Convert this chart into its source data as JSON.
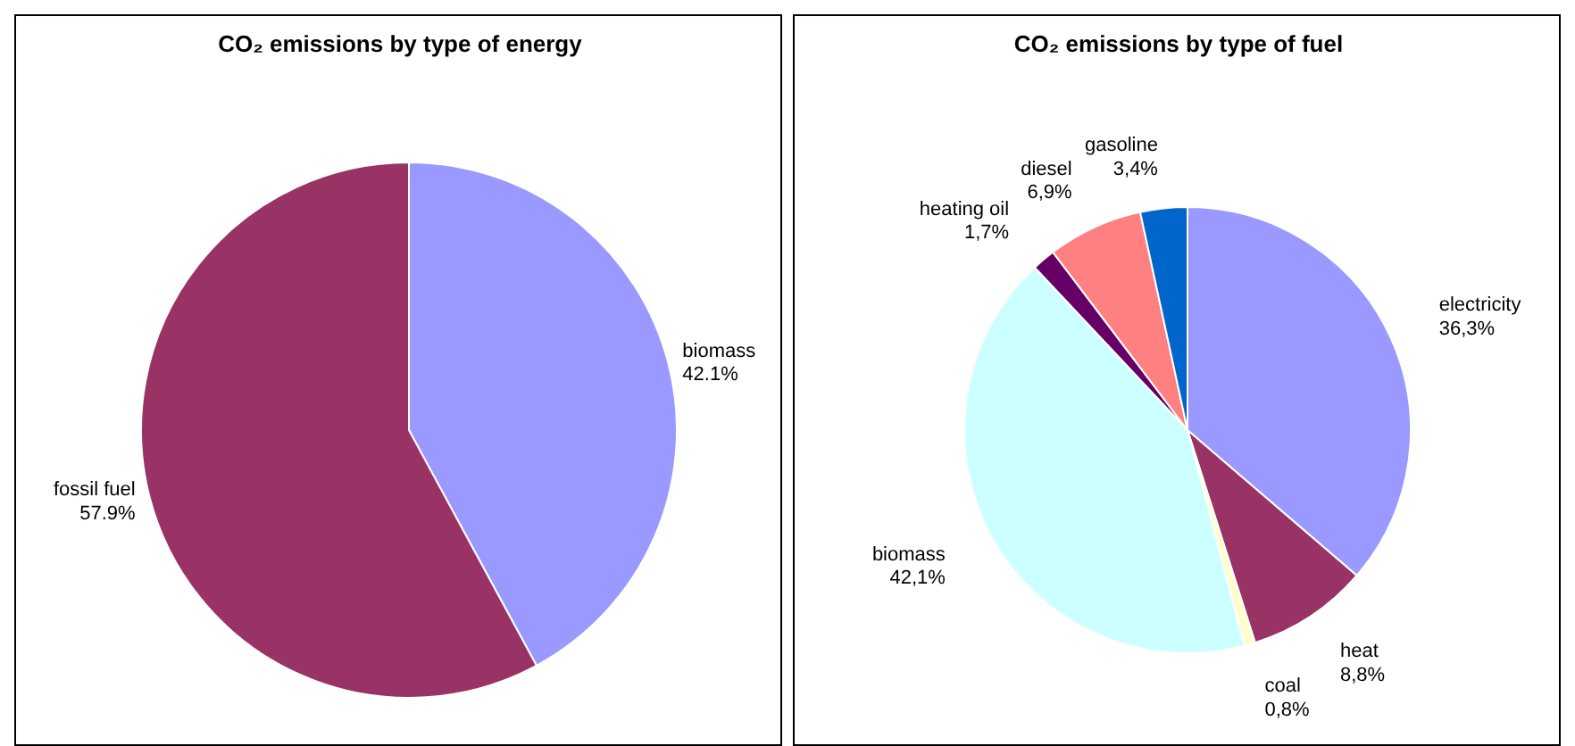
{
  "chart_data": [
    {
      "type": "pie",
      "title": "CO₂ emissions by type of energy",
      "categories": [
        "biomass",
        "fossil fuel"
      ],
      "values": [
        42.1,
        57.9
      ],
      "colors": [
        "#9999ff",
        "#993366"
      ],
      "value_labels": [
        "42.1%",
        "57.9%"
      ]
    },
    {
      "type": "pie",
      "title": "CO₂ emissions by type of fuel",
      "categories": [
        "electricity",
        "heat",
        "coal",
        "biomass",
        "heating oil",
        "diesel",
        "gasoline"
      ],
      "values": [
        36.3,
        8.8,
        0.8,
        42.1,
        1.7,
        6.9,
        3.4
      ],
      "colors": [
        "#9999ff",
        "#993366",
        "#ffffcc",
        "#ccffff",
        "#660066",
        "#ff8080",
        "#0066cc"
      ],
      "value_labels": [
        "36,3%",
        "8,8%",
        "0,8%",
        "42,1%",
        "1,7%",
        "6,9%",
        "3,4%"
      ]
    }
  ]
}
